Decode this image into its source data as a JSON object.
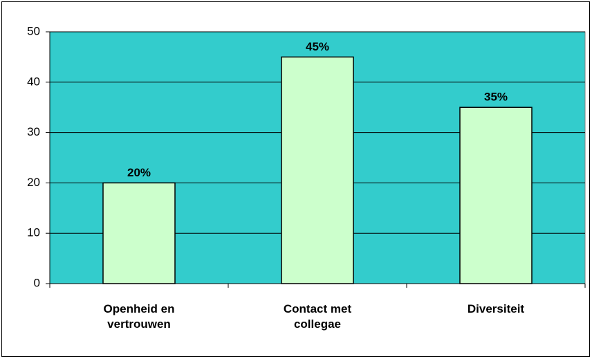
{
  "chart_data": {
    "type": "bar",
    "categories": [
      "Openheid en vertrouwen",
      "Contact met collegae",
      "Diversiteit"
    ],
    "values": [
      20,
      45,
      35
    ],
    "value_labels": [
      "20%",
      "45%",
      "35%"
    ],
    "color": "#ccffcc",
    "plot_background": "#33cccc",
    "ylim": [
      0,
      50
    ],
    "yticks": [
      0,
      10,
      20,
      30,
      40,
      50
    ],
    "grid": true
  }
}
